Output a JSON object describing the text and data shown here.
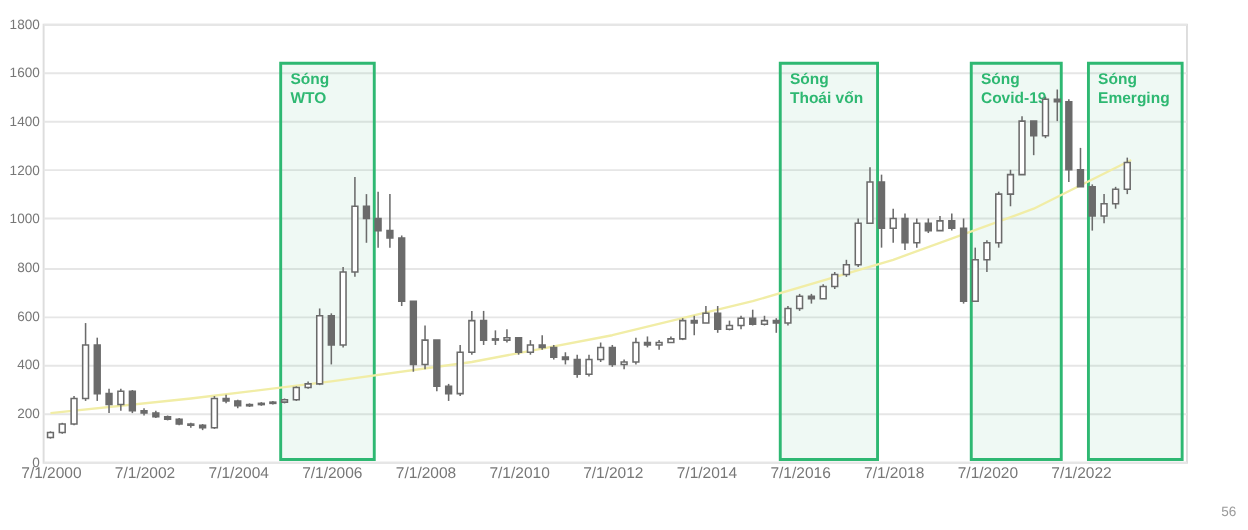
{
  "chart_data": {
    "type": "candlestick",
    "x": [
      "2000-07",
      "2000-10",
      "2001-01",
      "2001-04",
      "2001-07",
      "2001-10",
      "2002-01",
      "2002-04",
      "2002-07",
      "2002-10",
      "2003-01",
      "2003-04",
      "2003-07",
      "2003-10",
      "2004-01",
      "2004-04",
      "2004-07",
      "2004-10",
      "2005-01",
      "2005-04",
      "2005-07",
      "2005-10",
      "2006-01",
      "2006-04",
      "2006-07",
      "2006-10",
      "2007-01",
      "2007-04",
      "2007-07",
      "2007-10",
      "2008-01",
      "2008-04",
      "2008-07",
      "2008-10",
      "2009-01",
      "2009-04",
      "2009-07",
      "2009-10",
      "2010-01",
      "2010-04",
      "2010-07",
      "2010-10",
      "2011-01",
      "2011-04",
      "2011-07",
      "2011-10",
      "2012-01",
      "2012-04",
      "2012-07",
      "2012-10",
      "2013-01",
      "2013-04",
      "2013-07",
      "2013-10",
      "2014-01",
      "2014-04",
      "2014-07",
      "2014-10",
      "2015-01",
      "2015-04",
      "2015-07",
      "2015-10",
      "2016-01",
      "2016-04",
      "2016-07",
      "2016-10",
      "2017-01",
      "2017-04",
      "2017-07",
      "2017-10",
      "2018-01",
      "2018-04",
      "2018-07",
      "2018-10",
      "2019-01",
      "2019-04",
      "2019-07",
      "2019-10",
      "2020-01",
      "2020-04",
      "2020-07",
      "2020-10",
      "2021-01",
      "2021-04",
      "2021-07",
      "2021-10",
      "2022-01",
      "2022-04",
      "2022-07",
      "2022-10",
      "2023-01",
      "2023-04",
      "2023-07"
    ],
    "ohlc": [
      [
        100,
        125,
        95,
        120
      ],
      [
        120,
        160,
        115,
        155
      ],
      [
        155,
        270,
        150,
        260
      ],
      [
        260,
        570,
        250,
        480
      ],
      [
        480,
        510,
        250,
        280
      ],
      [
        280,
        300,
        200,
        235
      ],
      [
        235,
        300,
        210,
        290
      ],
      [
        290,
        295,
        200,
        210
      ],
      [
        210,
        220,
        190,
        200
      ],
      [
        200,
        210,
        180,
        185
      ],
      [
        185,
        190,
        170,
        175
      ],
      [
        175,
        180,
        150,
        155
      ],
      [
        155,
        160,
        140,
        150
      ],
      [
        150,
        155,
        130,
        140
      ],
      [
        140,
        270,
        135,
        260
      ],
      [
        260,
        275,
        240,
        250
      ],
      [
        250,
        255,
        220,
        230
      ],
      [
        230,
        240,
        225,
        235
      ],
      [
        235,
        245,
        230,
        240
      ],
      [
        240,
        250,
        235,
        245
      ],
      [
        245,
        260,
        240,
        255
      ],
      [
        255,
        310,
        250,
        305
      ],
      [
        305,
        330,
        300,
        320
      ],
      [
        320,
        630,
        315,
        600
      ],
      [
        600,
        610,
        400,
        480
      ],
      [
        480,
        800,
        470,
        780
      ],
      [
        780,
        1170,
        760,
        1050
      ],
      [
        1050,
        1100,
        900,
        1000
      ],
      [
        1000,
        1110,
        880,
        950
      ],
      [
        950,
        1100,
        880,
        920
      ],
      [
        920,
        930,
        640,
        660
      ],
      [
        660,
        660,
        370,
        400
      ],
      [
        400,
        560,
        380,
        500
      ],
      [
        500,
        500,
        290,
        310
      ],
      [
        310,
        320,
        250,
        280
      ],
      [
        280,
        480,
        270,
        450
      ],
      [
        450,
        620,
        440,
        580
      ],
      [
        580,
        620,
        480,
        500
      ],
      [
        500,
        540,
        480,
        505
      ],
      [
        500,
        545,
        490,
        510
      ],
      [
        510,
        510,
        440,
        450
      ],
      [
        450,
        500,
        440,
        480
      ],
      [
        480,
        520,
        460,
        470
      ],
      [
        470,
        480,
        420,
        430
      ],
      [
        430,
        450,
        400,
        420
      ],
      [
        420,
        440,
        345,
        360
      ],
      [
        360,
        440,
        350,
        420
      ],
      [
        420,
        490,
        410,
        470
      ],
      [
        470,
        480,
        390,
        400
      ],
      [
        400,
        420,
        380,
        410
      ],
      [
        410,
        510,
        400,
        490
      ],
      [
        490,
        515,
        470,
        480
      ],
      [
        480,
        500,
        460,
        490
      ],
      [
        490,
        515,
        490,
        505
      ],
      [
        505,
        590,
        500,
        580
      ],
      [
        580,
        600,
        520,
        570
      ],
      [
        570,
        640,
        570,
        610
      ],
      [
        610,
        640,
        530,
        545
      ],
      [
        545,
        580,
        540,
        560
      ],
      [
        560,
        600,
        545,
        590
      ],
      [
        590,
        625,
        560,
        565
      ],
      [
        565,
        600,
        560,
        580
      ],
      [
        580,
        590,
        530,
        570
      ],
      [
        570,
        640,
        560,
        630
      ],
      [
        630,
        690,
        620,
        680
      ],
      [
        680,
        690,
        650,
        670
      ],
      [
        670,
        730,
        670,
        720
      ],
      [
        720,
        780,
        710,
        770
      ],
      [
        770,
        830,
        760,
        810
      ],
      [
        810,
        1000,
        800,
        980
      ],
      [
        980,
        1210,
        980,
        1150
      ],
      [
        1150,
        1180,
        880,
        960
      ],
      [
        960,
        1040,
        900,
        1000
      ],
      [
        1000,
        1020,
        870,
        900
      ],
      [
        900,
        1000,
        880,
        980
      ],
      [
        980,
        1000,
        940,
        950
      ],
      [
        950,
        1010,
        950,
        990
      ],
      [
        990,
        1020,
        950,
        960
      ],
      [
        960,
        1000,
        650,
        660
      ],
      [
        660,
        880,
        660,
        830
      ],
      [
        830,
        910,
        780,
        900
      ],
      [
        900,
        1110,
        880,
        1100
      ],
      [
        1100,
        1200,
        1050,
        1180
      ],
      [
        1180,
        1420,
        1180,
        1400
      ],
      [
        1400,
        1400,
        1260,
        1340
      ],
      [
        1340,
        1500,
        1330,
        1490
      ],
      [
        1490,
        1530,
        1400,
        1480
      ],
      [
        1480,
        1490,
        1150,
        1200
      ],
      [
        1200,
        1290,
        1130,
        1130
      ],
      [
        1130,
        1140,
        950,
        1010
      ],
      [
        1010,
        1100,
        980,
        1060
      ],
      [
        1060,
        1130,
        1040,
        1120
      ],
      [
        1120,
        1250,
        1100,
        1230
      ]
    ],
    "color": "#6b6b6b",
    "series": [
      {
        "type": "line",
        "color": "#f1eda6",
        "x": [
          "2000-07",
          "2003-07",
          "2006-07",
          "2009-07",
          "2012-07",
          "2015-07",
          "2018-07",
          "2021-07",
          "2023-08"
        ],
        "values": [
          200,
          260,
          330,
          410,
          520,
          660,
          830,
          1040,
          1240
        ]
      }
    ],
    "bands": [
      {
        "axis": "x",
        "from": "2005-06",
        "to": "2007-06",
        "label": "Sóng WTO",
        "color": "#2eb872"
      },
      {
        "axis": "x",
        "from": "2016-02",
        "to": "2018-03",
        "label": "Sóng Thoái vốn",
        "color": "#2eb872"
      },
      {
        "axis": "x",
        "from": "2020-03",
        "to": "2022-02",
        "label": "Sóng Covid-19",
        "color": "#2eb872"
      },
      {
        "axis": "x",
        "from": "2022-09",
        "to": "2024-09",
        "label": "Sóng Emerging",
        "color": "#2eb872"
      }
    ],
    "xlim": [
      "2000-05",
      "2024-10"
    ],
    "xticks": [
      {
        "value": "2000-07-01",
        "label": "7/1/2000"
      },
      {
        "value": "2002-07-01",
        "label": "7/1/2002"
      },
      {
        "value": "2004-07-01",
        "label": "7/1/2004"
      },
      {
        "value": "2006-07-01",
        "label": "7/1/2006"
      },
      {
        "value": "2008-07-01",
        "label": "7/1/2008"
      },
      {
        "value": "2010-07-01",
        "label": "7/1/2010"
      },
      {
        "value": "2012-07-01",
        "label": "7/1/2012"
      },
      {
        "value": "2014-07-01",
        "label": "7/1/2014"
      },
      {
        "value": "2016-07-01",
        "label": "7/1/2016"
      },
      {
        "value": "2018-07-01",
        "label": "7/1/2018"
      },
      {
        "value": "2020-07-01",
        "label": "7/1/2020"
      },
      {
        "value": "2022-07-01",
        "label": "7/1/2022"
      }
    ],
    "ylim": [
      0,
      1800
    ],
    "yticks": [
      0,
      200,
      400,
      600,
      800,
      1000,
      1200,
      1400,
      1600,
      1800
    ],
    "grid": "y",
    "annotations": [
      "56"
    ]
  }
}
